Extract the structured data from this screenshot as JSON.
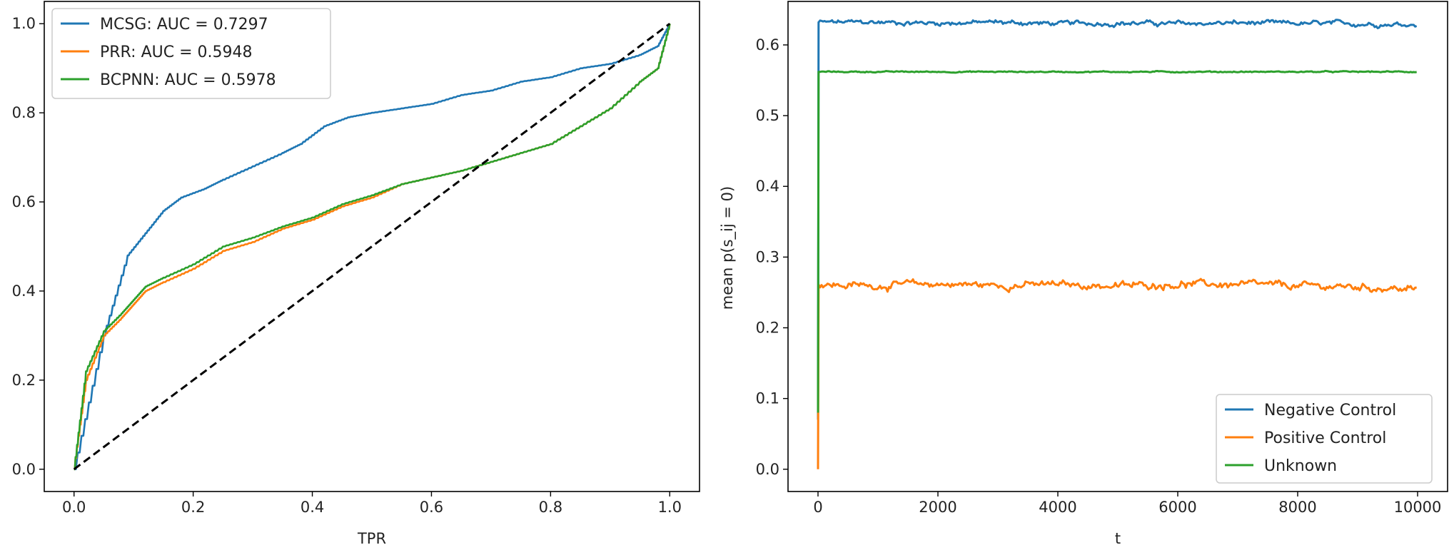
{
  "chart_data": [
    {
      "type": "line",
      "title": "",
      "xlabel": "TPR",
      "ylabel": "",
      "xlim": [
        -0.05,
        1.05
      ],
      "ylim": [
        -0.05,
        1.05
      ],
      "xticks": [
        "0.0",
        "0.2",
        "0.4",
        "0.6",
        "0.8",
        "1.0"
      ],
      "yticks": [
        "0.0",
        "0.2",
        "0.4",
        "0.6",
        "0.8",
        "1.0"
      ],
      "grid": false,
      "legend": "top-left",
      "series": [
        {
          "name": "MCSG: AUC = 0.7297",
          "color": "#1f77b4",
          "x": [
            0,
            0.05,
            0.09,
            0.12,
            0.15,
            0.18,
            0.22,
            0.25,
            0.3,
            0.35,
            0.38,
            0.42,
            0.46,
            0.5,
            0.55,
            0.6,
            0.65,
            0.7,
            0.75,
            0.8,
            0.85,
            0.9,
            0.95,
            0.98,
            1.0
          ],
          "y": [
            0,
            0.3,
            0.48,
            0.53,
            0.58,
            0.61,
            0.63,
            0.65,
            0.68,
            0.71,
            0.73,
            0.77,
            0.79,
            0.8,
            0.81,
            0.82,
            0.84,
            0.85,
            0.87,
            0.88,
            0.9,
            0.91,
            0.93,
            0.95,
            1.0
          ]
        },
        {
          "name": "PRR: AUC = 0.5948",
          "color": "#ff7f0e",
          "x": [
            0,
            0.02,
            0.05,
            0.08,
            0.1,
            0.12,
            0.15,
            0.2,
            0.25,
            0.3,
            0.35,
            0.4,
            0.45,
            0.5,
            0.55,
            0.6,
            0.65,
            0.7,
            0.75,
            0.8,
            0.85,
            0.9,
            0.95,
            0.98,
            1.0
          ],
          "y": [
            0,
            0.2,
            0.3,
            0.34,
            0.37,
            0.4,
            0.42,
            0.45,
            0.49,
            0.51,
            0.54,
            0.56,
            0.59,
            0.61,
            0.64,
            0.655,
            0.67,
            0.69,
            0.71,
            0.73,
            0.77,
            0.81,
            0.87,
            0.9,
            1.0
          ]
        },
        {
          "name": "BCPNN: AUC = 0.5978",
          "color": "#2ca02c",
          "x": [
            0,
            0.02,
            0.05,
            0.08,
            0.1,
            0.12,
            0.15,
            0.2,
            0.25,
            0.3,
            0.35,
            0.4,
            0.45,
            0.5,
            0.55,
            0.6,
            0.65,
            0.7,
            0.75,
            0.8,
            0.85,
            0.9,
            0.95,
            0.98,
            1.0
          ],
          "y": [
            0,
            0.22,
            0.31,
            0.35,
            0.38,
            0.41,
            0.43,
            0.46,
            0.5,
            0.52,
            0.545,
            0.565,
            0.595,
            0.615,
            0.64,
            0.655,
            0.67,
            0.69,
            0.71,
            0.73,
            0.77,
            0.81,
            0.87,
            0.9,
            1.0
          ]
        },
        {
          "name": "",
          "color": "#000000",
          "dashed": true,
          "x": [
            0,
            1
          ],
          "y": [
            0,
            1
          ]
        }
      ]
    },
    {
      "type": "line",
      "title": "",
      "xlabel": "t",
      "ylabel": "mean p(s_ij = 0)",
      "xlim": [
        -500,
        10500
      ],
      "ylim": [
        -0.0315,
        0.6615
      ],
      "xticks": [
        "0",
        "2000",
        "4000",
        "6000",
        "8000",
        "10000"
      ],
      "yticks": [
        "0.0",
        "0.1",
        "0.2",
        "0.3",
        "0.4",
        "0.5",
        "0.6"
      ],
      "grid": false,
      "legend": "bottom-right",
      "series": [
        {
          "name": "Negative Control",
          "color": "#1f77b4",
          "x": [
            0,
            10,
            1000,
            2000,
            3000,
            4000,
            5000,
            6000,
            7000,
            8000,
            9000,
            10000
          ],
          "y": [
            0.07,
            0.632,
            0.632,
            0.631,
            0.632,
            0.63,
            0.631,
            0.63,
            0.631,
            0.63,
            0.63,
            0.629
          ],
          "noise": 0.004
        },
        {
          "name": "Positive Control",
          "color": "#ff7f0e",
          "x": [
            0,
            10,
            1000,
            2000,
            3000,
            4000,
            5000,
            6000,
            7000,
            8000,
            9000,
            10000
          ],
          "y": [
            0.0,
            0.26,
            0.26,
            0.262,
            0.26,
            0.261,
            0.259,
            0.262,
            0.261,
            0.259,
            0.258,
            0.254
          ],
          "noise": 0.006
        },
        {
          "name": "Unknown",
          "color": "#2ca02c",
          "x": [
            0,
            10,
            1000,
            2000,
            3000,
            4000,
            5000,
            6000,
            7000,
            8000,
            9000,
            10000
          ],
          "y": [
            0.08,
            0.562,
            0.562,
            0.562,
            0.562,
            0.562,
            0.562,
            0.562,
            0.562,
            0.562,
            0.562,
            0.562
          ],
          "noise": 0.001
        }
      ]
    }
  ]
}
